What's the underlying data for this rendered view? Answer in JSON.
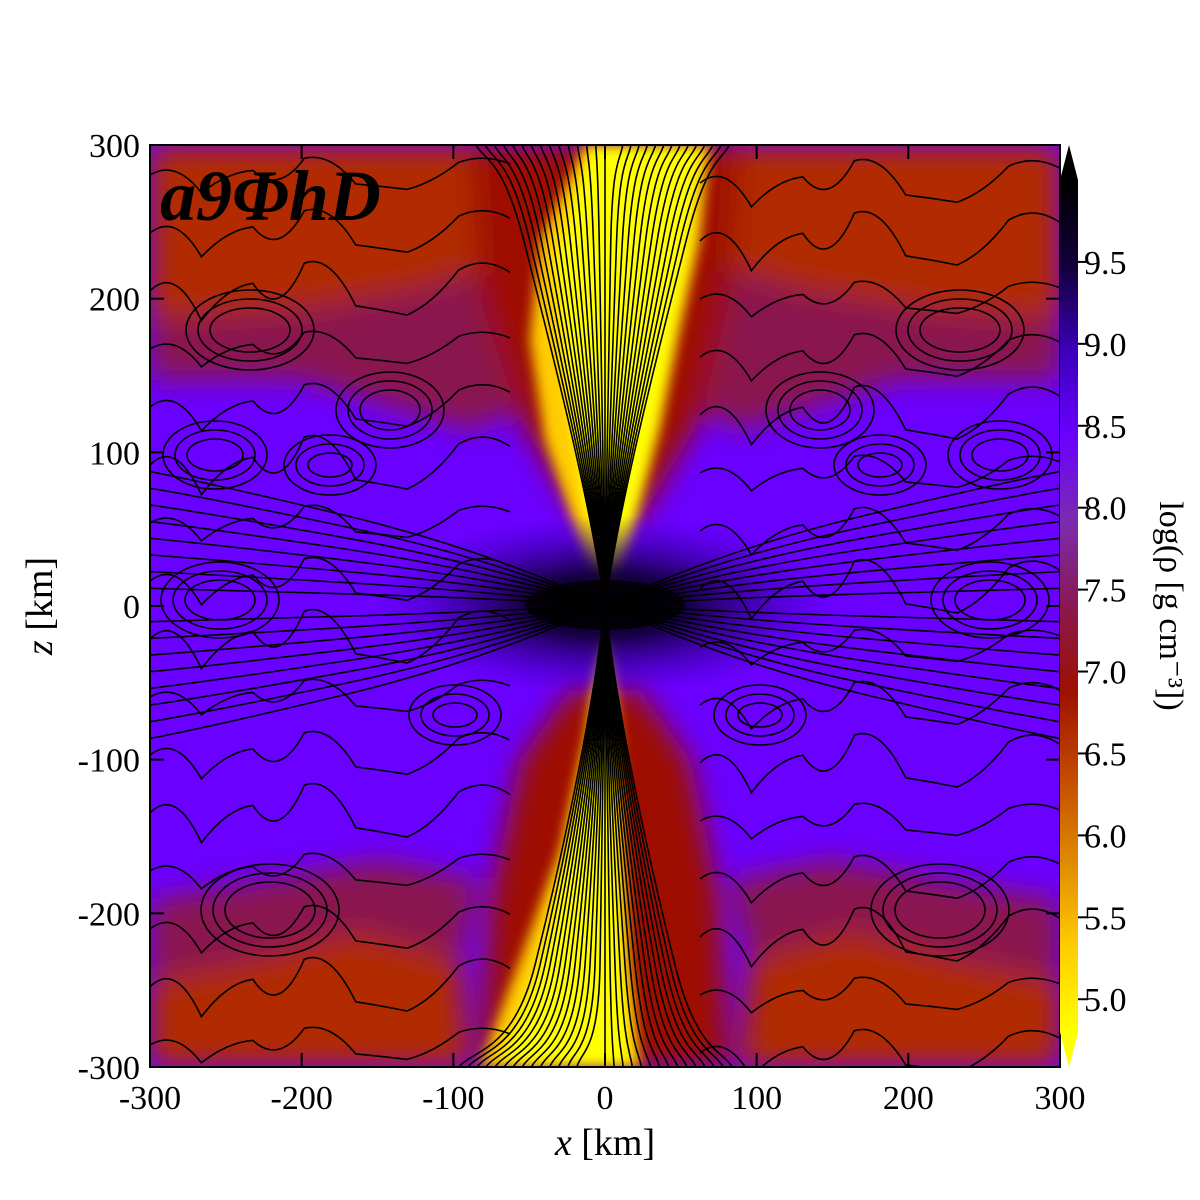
{
  "chart_data": {
    "type": "heatmap",
    "title": "",
    "panel_label": "a9ΦhD",
    "xlabel_var": "x",
    "xlabel_unit": " [km]",
    "ylabel_var": "z",
    "ylabel_unit": " [km]",
    "xlim": [
      -300,
      300
    ],
    "ylim": [
      -300,
      300
    ],
    "x_ticks": [
      "-300",
      "-200",
      "-100",
      "0",
      "100",
      "200",
      "300"
    ],
    "y_ticks": [
      "300",
      "200",
      "100",
      "0",
      "-100",
      "-200",
      "-300"
    ],
    "x_tick_values": [
      -300,
      -200,
      -100,
      0,
      100,
      200,
      300
    ],
    "y_tick_values": [
      300,
      200,
      100,
      0,
      -100,
      -200,
      -300
    ],
    "colorbar": {
      "label": "log(ρ [g cm⁻³])",
      "range": [
        4.8,
        10.0
      ],
      "ticks": [
        "5.0",
        "5.5",
        "6.0",
        "6.5",
        "7.0",
        "7.5",
        "8.0",
        "8.5",
        "9.0",
        "9.5"
      ],
      "tick_values": [
        5.0,
        5.5,
        6.0,
        6.5,
        7.0,
        7.5,
        8.0,
        8.5,
        9.0,
        9.5
      ],
      "extend": "both",
      "colormap": [
        "#ffff00",
        "#ffcc00",
        "#e08a00",
        "#c34a00",
        "#9e1000",
        "#8a1850",
        "#7a2cb0",
        "#6a00ff",
        "#3a00b8",
        "#12003a",
        "#000000"
      ]
    },
    "contours": "black field lines (magnetic flux) overlaid on density",
    "grid": false
  }
}
